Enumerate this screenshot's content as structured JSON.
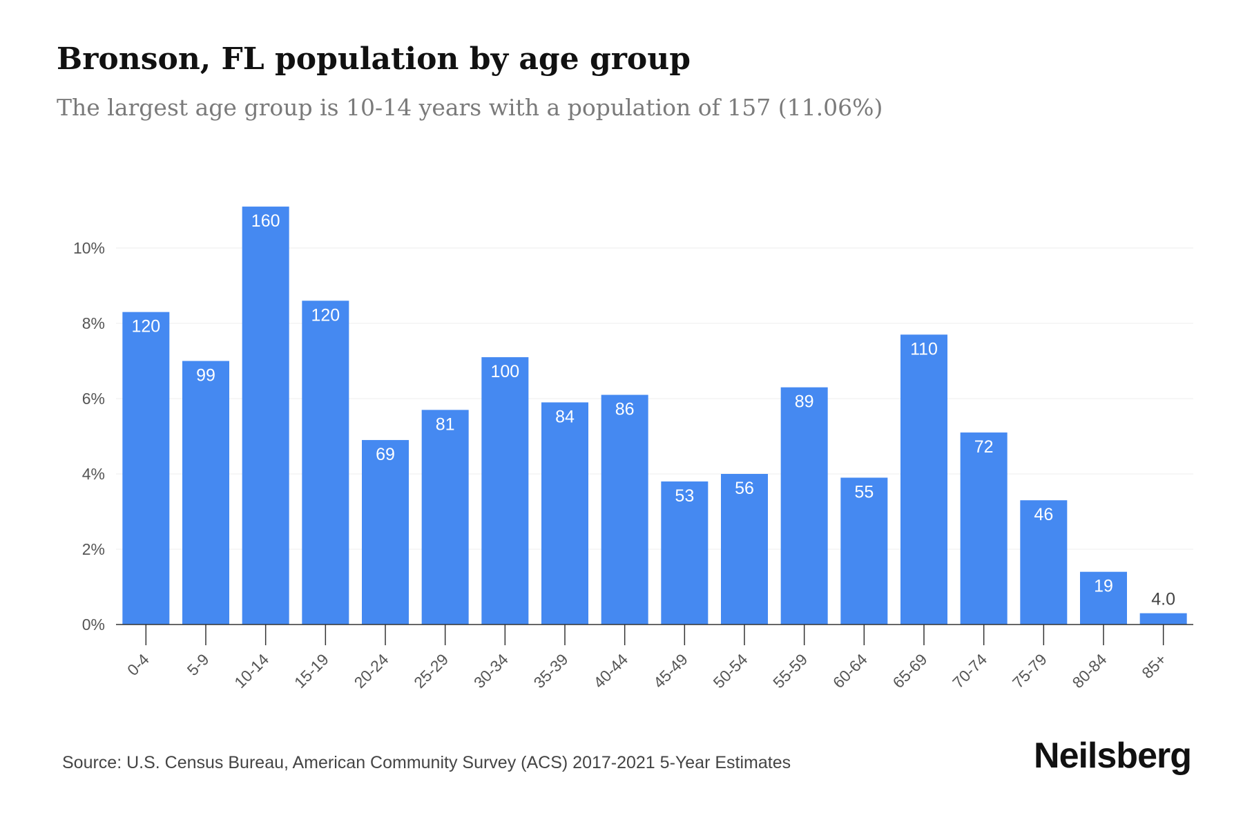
{
  "header": {
    "title": "Bronson, FL population by age group",
    "subtitle": "The largest age group is 10-14 years with a population of 157 (11.06%)"
  },
  "footer": {
    "source": "Source: U.S. Census Bureau, American Community Survey (ACS) 2017-2021 5-Year Estimates",
    "brand": "Neilsberg"
  },
  "colors": {
    "bar": "#4589f1",
    "bar_label": "#ffffff",
    "small_bar_label": "#444444",
    "grid": "#eeeeee",
    "axis": "#333333",
    "tick_label": "#555555"
  },
  "chart_data": {
    "type": "bar",
    "categories": [
      "0-4",
      "5-9",
      "10-14",
      "15-19",
      "20-24",
      "25-29",
      "30-34",
      "35-39",
      "40-44",
      "45-49",
      "50-54",
      "55-59",
      "60-64",
      "65-69",
      "70-74",
      "75-79",
      "80-84",
      "85+"
    ],
    "values": [
      8.3,
      7.0,
      11.1,
      8.6,
      4.9,
      5.7,
      7.1,
      5.9,
      6.1,
      3.8,
      4.0,
      6.3,
      3.9,
      7.7,
      5.1,
      3.3,
      1.4,
      0.3
    ],
    "data_labels": [
      "120",
      "99",
      "160",
      "120",
      "69",
      "81",
      "100",
      "84",
      "86",
      "53",
      "56",
      "89",
      "55",
      "110",
      "72",
      "46",
      "19",
      "4.0"
    ],
    "y_ticks": [
      0,
      2,
      4,
      6,
      8,
      10
    ],
    "y_tick_labels": [
      "0%",
      "2%",
      "4%",
      "6%",
      "8%",
      "10%"
    ],
    "ylim": [
      0,
      11.1
    ],
    "grid": true,
    "xlabel": "",
    "ylabel": ""
  }
}
